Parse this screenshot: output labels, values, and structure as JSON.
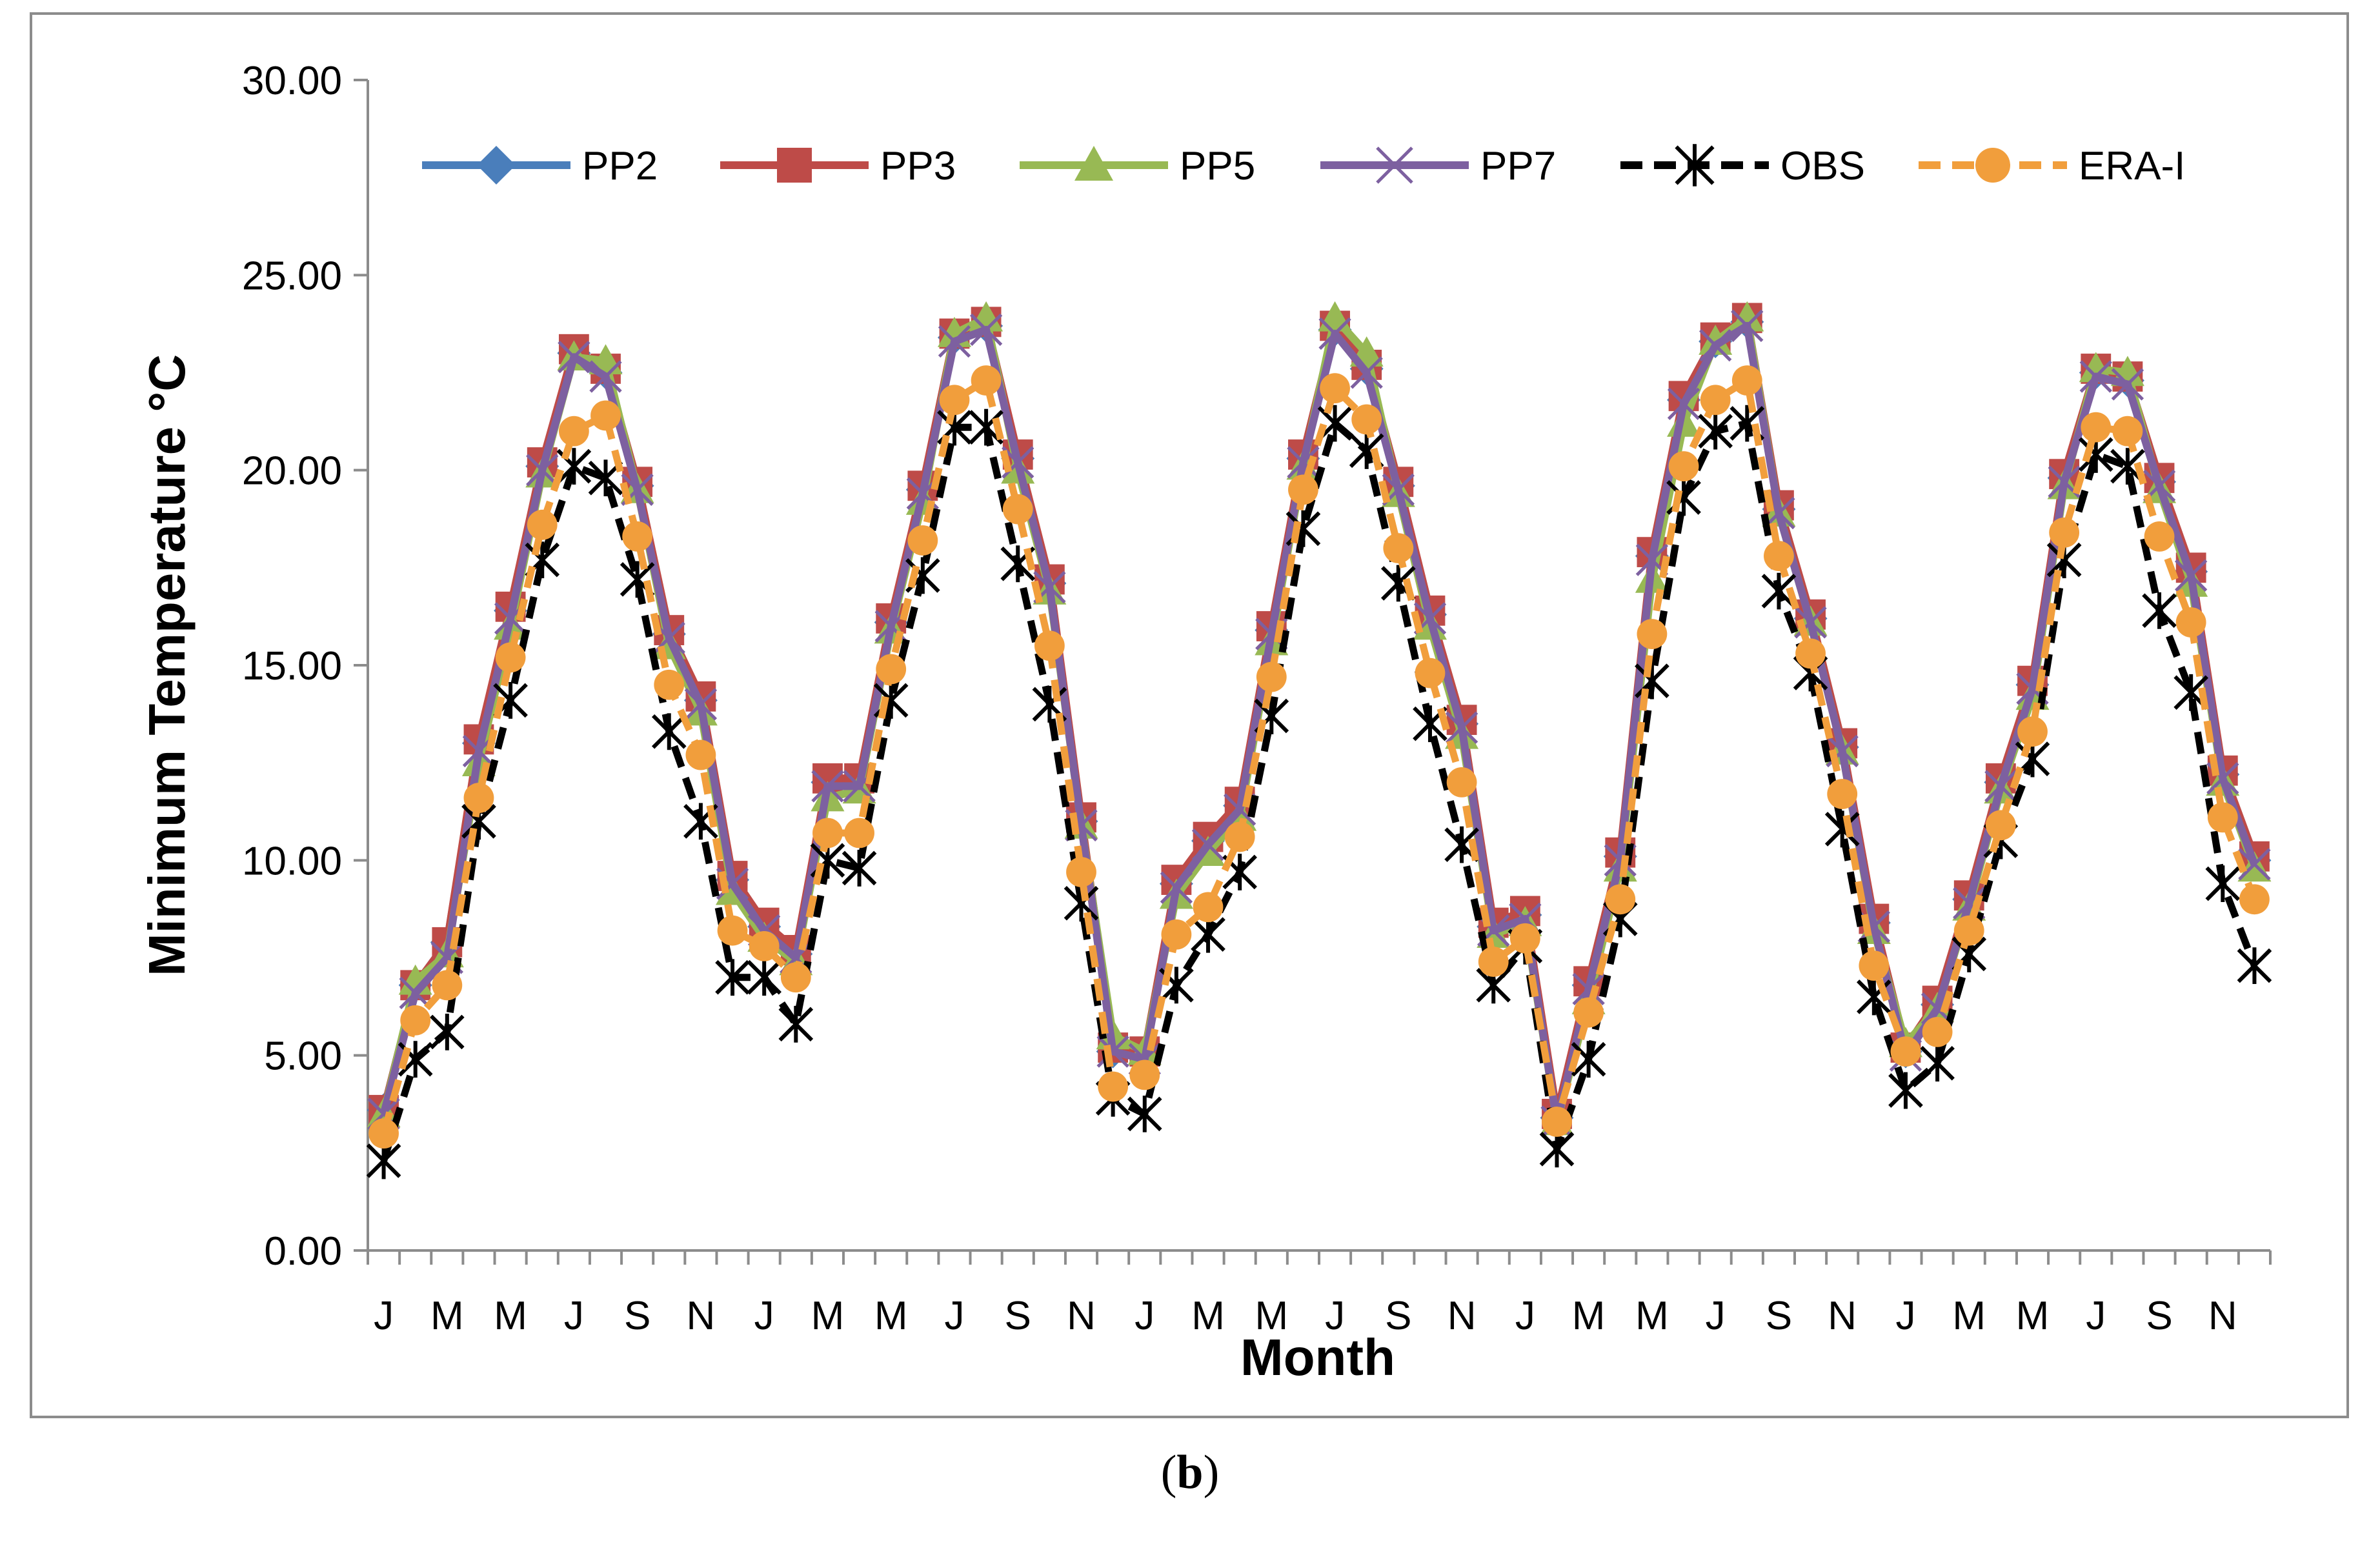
{
  "caption": {
    "open": "(",
    "letter": "b",
    "close": ")"
  },
  "chart_data": {
    "type": "line",
    "xlabel": "Month",
    "ylabel": "Minimum  Temperature °C",
    "ylim": [
      0,
      30
    ],
    "yticks": [
      "0.00",
      "5.00",
      "10.00",
      "15.00",
      "20.00",
      "25.00",
      "30.00"
    ],
    "month_labels": [
      "J",
      "M",
      "M",
      "J",
      "S",
      "N",
      "J",
      "M",
      "M",
      "J",
      "S",
      "N",
      "J",
      "M",
      "M",
      "J",
      "S",
      "N",
      "J",
      "M",
      "M",
      "J",
      "S",
      "N",
      "J",
      "M",
      "M",
      "J",
      "S",
      "N"
    ],
    "legend_position": "top",
    "grid": false,
    "series": [
      {
        "name": "PP2",
        "color": "#4a7ebb",
        "marker": "diamond",
        "dash": false,
        "values": [
          3.6,
          6.8,
          7.9,
          13.0,
          16.4,
          20.1,
          23.0,
          22.5,
          19.6,
          15.8,
          14.1,
          9.5,
          8.3,
          7.6,
          12.0,
          12.0,
          16.1,
          19.5,
          23.4,
          23.7,
          20.3,
          17.1,
          11.0,
          5.1,
          5.0,
          9.4,
          10.5,
          11.4,
          15.9,
          20.3,
          23.6,
          22.6,
          19.6,
          16.3,
          13.5,
          8.3,
          8.6,
          3.4,
          6.8,
          10.1,
          17.8,
          21.8,
          23.3,
          23.8,
          19.0,
          16.2,
          12.9,
          8.4,
          5.1,
          6.3,
          9.0,
          12.0,
          14.5,
          19.8,
          22.5,
          22.3,
          19.7,
          17.4,
          12.2,
          10.0
        ]
      },
      {
        "name": "PP3",
        "color": "#be4b48",
        "marker": "square",
        "dash": false,
        "values": [
          3.6,
          6.8,
          7.9,
          13.1,
          16.5,
          20.2,
          23.1,
          22.6,
          19.7,
          15.9,
          14.2,
          9.6,
          8.4,
          7.7,
          12.1,
          12.1,
          16.2,
          19.6,
          23.5,
          23.8,
          20.4,
          17.2,
          11.1,
          5.2,
          5.1,
          9.5,
          10.6,
          11.5,
          16.0,
          20.4,
          23.7,
          22.7,
          19.7,
          16.4,
          13.6,
          8.4,
          8.7,
          3.5,
          6.9,
          10.2,
          17.9,
          21.9,
          23.4,
          23.9,
          19.1,
          16.3,
          13.0,
          8.5,
          5.2,
          6.4,
          9.1,
          12.1,
          14.6,
          19.9,
          22.6,
          22.4,
          19.8,
          17.5,
          12.3,
          10.1
        ]
      },
      {
        "name": "PP5",
        "color": "#98b954",
        "marker": "triangle",
        "dash": false,
        "values": [
          3.5,
          6.9,
          7.6,
          12.5,
          16.0,
          19.9,
          22.9,
          22.8,
          19.5,
          15.5,
          13.8,
          9.2,
          8.0,
          7.4,
          11.6,
          11.8,
          15.9,
          19.2,
          23.5,
          23.9,
          20.0,
          16.9,
          10.9,
          5.5,
          5.1,
          9.1,
          10.2,
          11.1,
          15.6,
          20.1,
          23.9,
          23.0,
          19.4,
          16.0,
          13.2,
          8.1,
          8.4,
          3.3,
          6.4,
          9.8,
          17.2,
          21.2,
          23.3,
          23.9,
          18.9,
          16.1,
          12.8,
          8.2,
          5.3,
          6.2,
          8.8,
          11.8,
          14.2,
          19.6,
          22.6,
          22.5,
          19.5,
          17.1,
          12.0,
          9.8
        ]
      },
      {
        "name": "PP7",
        "color": "#7d60a0",
        "marker": "x",
        "dash": false,
        "values": [
          3.5,
          6.6,
          7.5,
          12.8,
          16.2,
          20.0,
          22.9,
          22.4,
          19.5,
          15.7,
          14.0,
          9.4,
          8.2,
          7.5,
          11.9,
          11.9,
          16.0,
          19.4,
          23.3,
          23.6,
          20.2,
          17.0,
          10.9,
          5.1,
          4.9,
          9.3,
          10.4,
          11.3,
          15.8,
          20.2,
          23.5,
          22.5,
          19.5,
          16.2,
          13.4,
          8.2,
          8.5,
          3.3,
          6.7,
          10.0,
          17.7,
          21.7,
          23.2,
          23.7,
          18.9,
          16.1,
          12.8,
          8.3,
          5.0,
          6.2,
          8.9,
          11.9,
          14.4,
          19.7,
          22.4,
          22.2,
          19.6,
          17.3,
          12.1,
          9.9
        ]
      },
      {
        "name": "OBS",
        "color": "#000000",
        "marker": "star",
        "dash": true,
        "values": [
          2.3,
          4.9,
          5.6,
          11.0,
          14.1,
          17.7,
          20.1,
          19.8,
          17.2,
          13.3,
          11.0,
          7.0,
          7.0,
          5.8,
          10.0,
          9.8,
          14.1,
          17.3,
          21.1,
          21.1,
          17.6,
          14.0,
          8.9,
          3.9,
          3.5,
          6.8,
          8.1,
          9.7,
          13.7,
          18.5,
          21.2,
          20.5,
          17.1,
          13.5,
          10.4,
          6.8,
          7.8,
          2.6,
          4.9,
          8.5,
          14.6,
          19.3,
          21.0,
          21.2,
          16.9,
          14.8,
          10.8,
          6.5,
          4.1,
          4.8,
          7.6,
          10.5,
          12.6,
          17.7,
          20.4,
          20.1,
          16.4,
          14.3,
          9.4,
          7.3
        ]
      },
      {
        "name": "ERA-I",
        "color": "#f19e3c",
        "marker": "circle",
        "dash": true,
        "values": [
          3.0,
          5.9,
          6.8,
          11.6,
          15.2,
          18.6,
          21.0,
          21.4,
          18.3,
          14.5,
          12.7,
          8.2,
          7.8,
          7.0,
          10.7,
          10.7,
          14.9,
          18.2,
          21.8,
          22.3,
          19.0,
          15.5,
          9.7,
          4.2,
          4.5,
          8.1,
          8.8,
          10.6,
          14.7,
          19.5,
          22.1,
          21.3,
          18.0,
          14.8,
          12.0,
          7.4,
          8.0,
          3.3,
          6.1,
          9.0,
          15.8,
          20.1,
          21.8,
          22.3,
          17.8,
          15.3,
          11.7,
          7.3,
          5.1,
          5.6,
          8.2,
          10.9,
          13.3,
          18.4,
          21.1,
          21.0,
          18.3,
          16.1,
          11.1,
          9.0
        ]
      }
    ]
  }
}
